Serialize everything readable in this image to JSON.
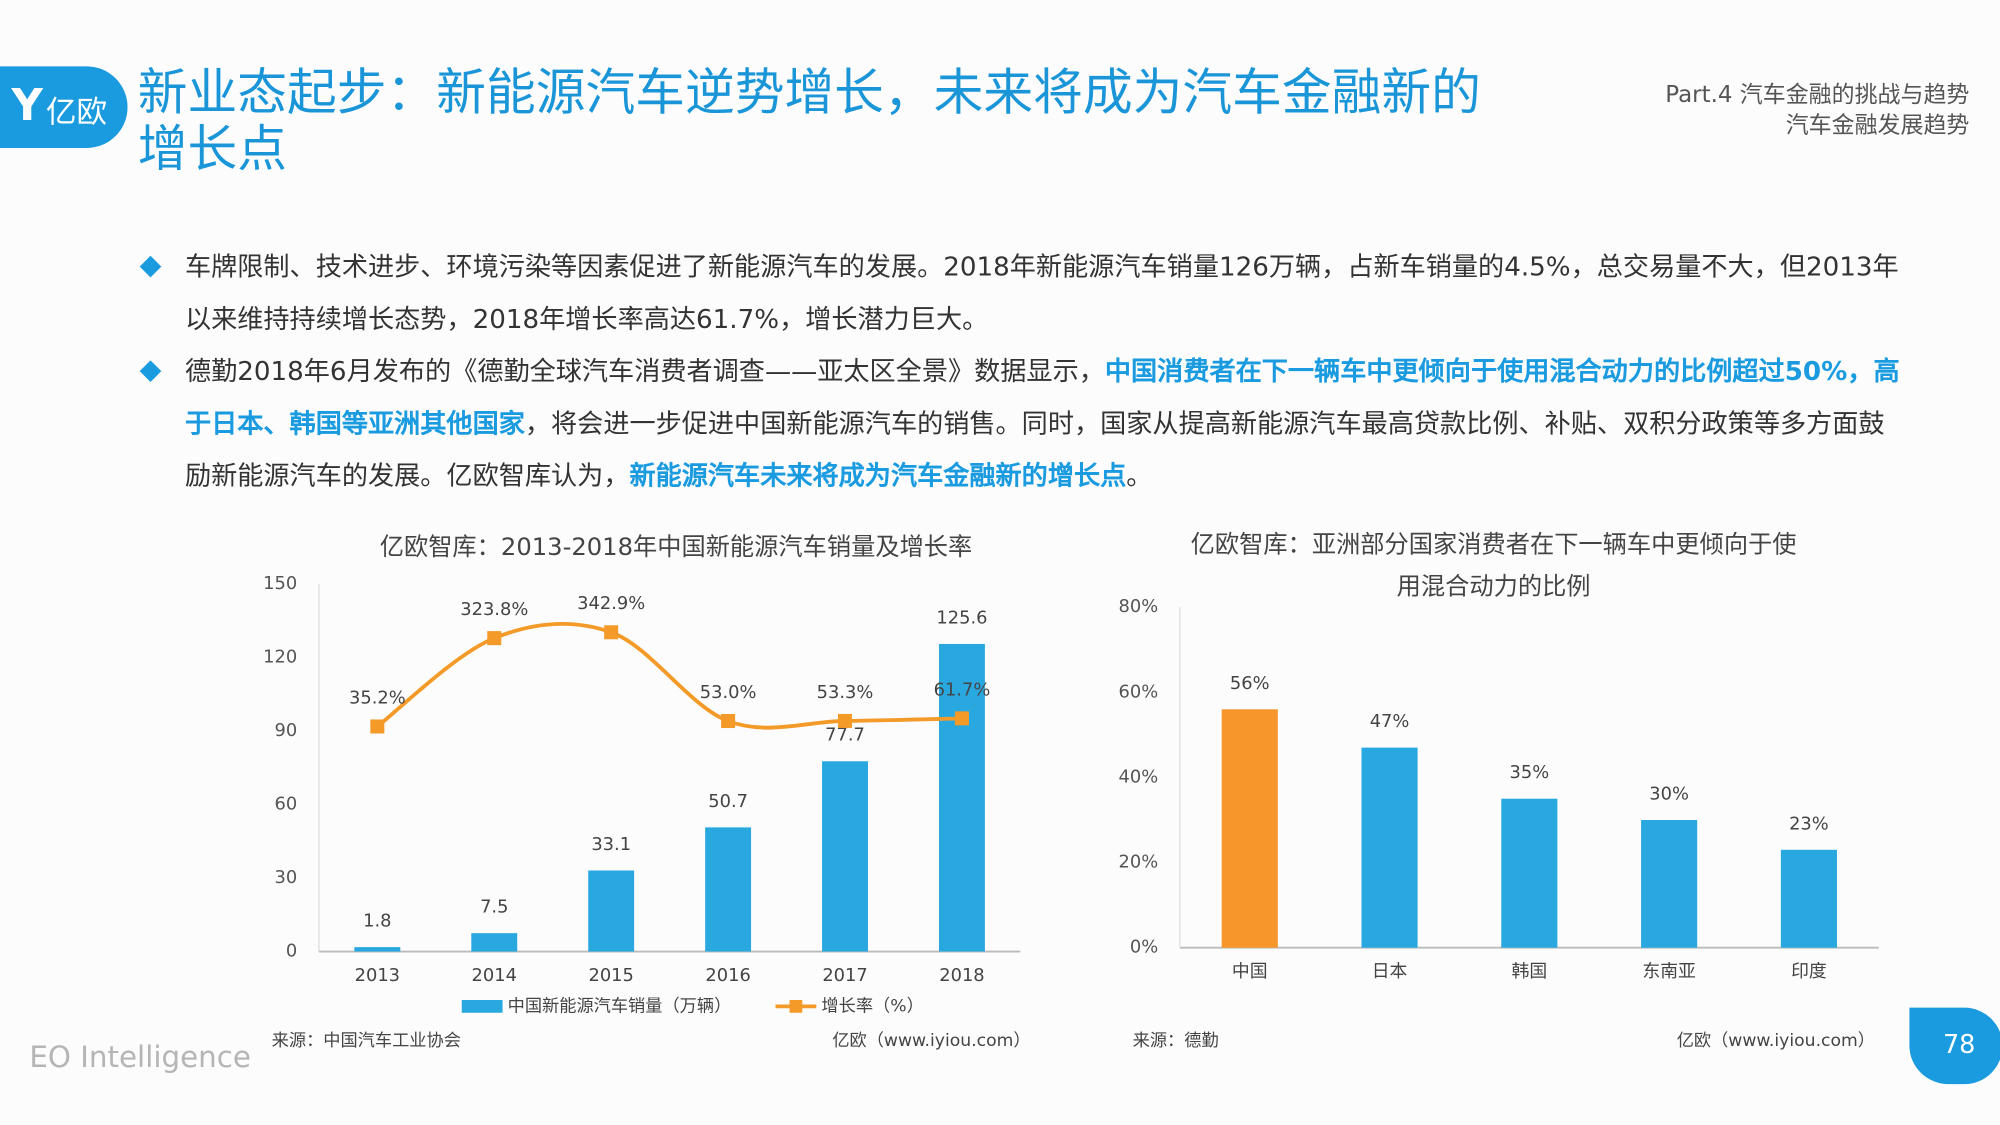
{
  "header": {
    "logo": "亿欧",
    "title": "新业态起步：新能源汽车逆势增长，未来将成为汽车金融新的增长点",
    "section": "Part.4 汽车金融的挑战与趋势",
    "subsection": "汽车金融发展趋势"
  },
  "bullets": [
    [
      "车牌限制、技术进步、环境污染等因素促进了新能源汽车的发展。2018年新能源汽车销量126万辆，占新车销量的4.5%，总交易量不大，但2013年以来维持持续增长态势，2018年增长率高达61.7%，增长潜力巨大。"
    ],
    [
      "德勤2018年6月发布的《德勤全球汽车消费者调查——亚太区全景》数据显示，",
      "中国消费者在下一辆车中更倾向于使用混合动力的比例超过50%，高于日本、韩国等亚洲其他国家",
      "，将会进一步促进中国新能源汽车的销售。同时，国家从提高新能源汽车最高贷款比例、补贴、双积分政策等多方面鼓励新能源汽车的发展。亿欧智库认为，",
      "新能源汽车未来将成为汽车金融新的增长点",
      "。"
    ]
  ],
  "chart_data": [
    {
      "type": "bar",
      "title": "亿欧智库：2013-2018年中国新能源汽车销量及增长率",
      "categories": [
        "2013",
        "2014",
        "2015",
        "2016",
        "2017",
        "2018"
      ],
      "series": [
        {
          "name": "中国新能源汽车销量（万辆）",
          "type": "bar",
          "color": "#29a8e0",
          "values": [
            1.8,
            7.5,
            33.1,
            50.7,
            77.7,
            125.6
          ]
        },
        {
          "name": "增长率（%）",
          "type": "line",
          "axis": "y2",
          "color": "#f39a28",
          "values": [
            35.2,
            323.8,
            342.9,
            53.0,
            53.3,
            61.7
          ],
          "value_labels": [
            "35.2%",
            "323.8%",
            "342.9%",
            "53.0%",
            "53.3%",
            "61.7%"
          ]
        }
      ],
      "ylim": [
        0,
        150
      ],
      "yticks": [
        0,
        30,
        60,
        90,
        120,
        150
      ],
      "y2lim": [
        -700,
        500
      ],
      "source": "来源：中国汽车工业协会",
      "credit": "亿欧（www.iyiou.com）"
    },
    {
      "type": "bar",
      "title": "亿欧智库：亚洲部分国家消费者在下一辆车中更倾向于使用混合动力的比例",
      "categories": [
        "中国",
        "日本",
        "韩国",
        "东南亚",
        "印度"
      ],
      "values": [
        56,
        47,
        35,
        30,
        23
      ],
      "value_labels": [
        "56%",
        "47%",
        "35%",
        "30%",
        "23%"
      ],
      "colors": [
        "#f7962a",
        "#29a8e0",
        "#29a8e0",
        "#29a8e0",
        "#29a8e0"
      ],
      "ylim": [
        0,
        80
      ],
      "yticks": [
        {
          "value": 0,
          "label": "0%"
        },
        {
          "value": 20,
          "label": "20%"
        },
        {
          "value": 40,
          "label": "40%"
        },
        {
          "value": 60,
          "label": "60%"
        },
        {
          "value": 80,
          "label": "80%"
        }
      ],
      "source": "来源：德勤",
      "credit": "亿欧（www.iyiou.com）"
    }
  ],
  "footer": {
    "brand": "EO Intelligence",
    "page": "78"
  }
}
